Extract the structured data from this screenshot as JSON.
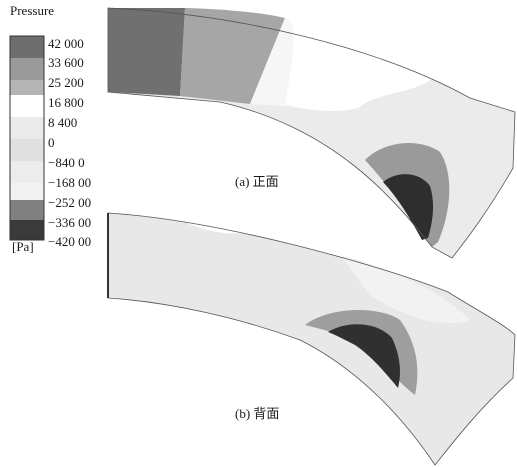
{
  "legend": {
    "title": "Pressure",
    "unit": "[Pa]",
    "ticks": [
      "42 000",
      "33 600",
      "25 200",
      "16 800",
      "8 400",
      "0",
      "−840 0",
      "−168 00",
      "−252 00",
      "−336 00",
      "−420 00"
    ],
    "colors": [
      "#6e6e6e",
      "#9a9a9a",
      "#b4b4b4",
      "#ffffff",
      "#ebebeb",
      "#e0e0e0",
      "#ececec",
      "#f2f2f2",
      "#808080",
      "#a6a6a6",
      "#3a3a3a"
    ]
  },
  "captions": {
    "front": "(a) 正面",
    "back": "(b) 背面"
  },
  "palette": {
    "dark": "#333333",
    "mid": "#7f7f7f",
    "light_mid": "#a8a8a8",
    "pale": "#e6e6e6",
    "outline": "#222222"
  }
}
